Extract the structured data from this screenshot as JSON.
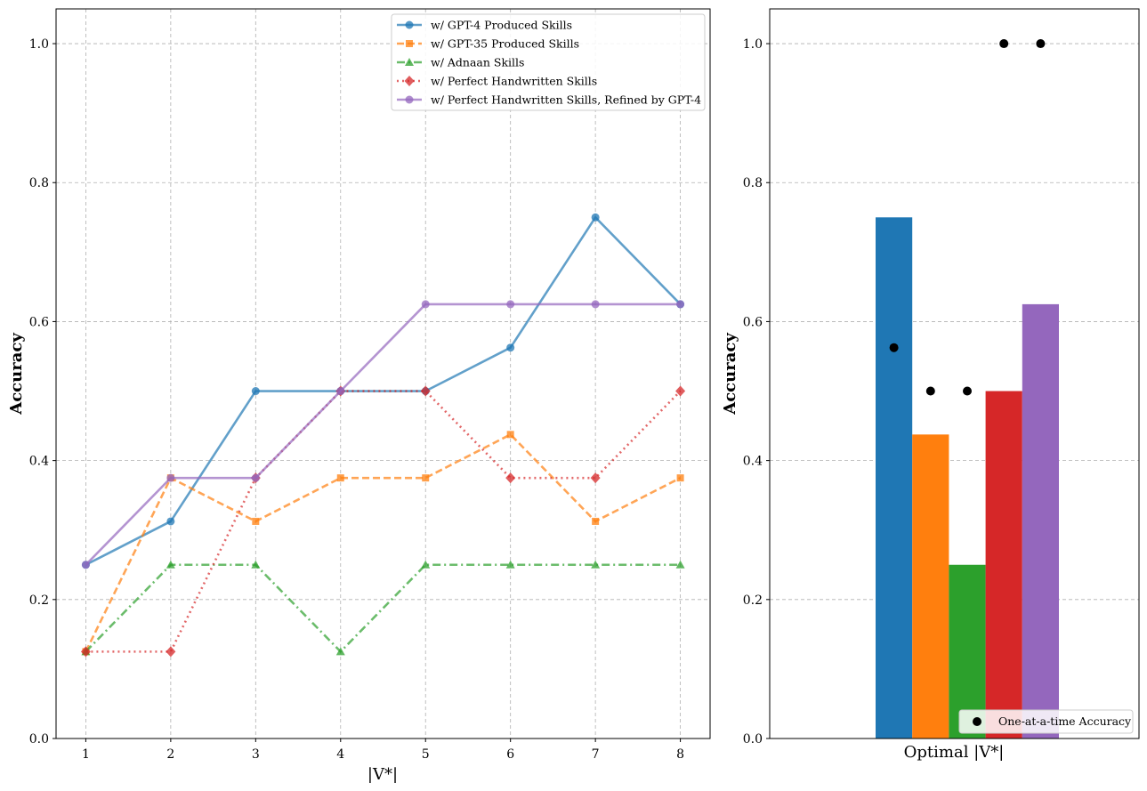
{
  "chart_data": [
    {
      "type": "line",
      "xlabel": "|V*|",
      "ylabel": "Accuracy",
      "xlim": [
        0.65,
        8.35
      ],
      "ylim": [
        0,
        1.05
      ],
      "grid": true,
      "legend_position": "top-right",
      "x": [
        1,
        2,
        3,
        4,
        5,
        6,
        7,
        8
      ],
      "x_ticks": [
        "1",
        "2",
        "3",
        "4",
        "5",
        "6",
        "7",
        "8"
      ],
      "y_ticks": [
        "0.0",
        "0.2",
        "0.4",
        "0.6",
        "0.8",
        "1.0"
      ],
      "series": [
        {
          "name": "w/ GPT-4 Produced Skills",
          "color": "#1f77b4",
          "marker": "circle",
          "dash": "solid",
          "values": [
            0.25,
            0.3125,
            0.5,
            0.5,
            0.5,
            0.5625,
            0.75,
            0.625
          ]
        },
        {
          "name": "w/ GPT-35 Produced Skills",
          "color": "#ff7f0e",
          "marker": "square",
          "dash": "dashed",
          "values": [
            0.125,
            0.375,
            0.3125,
            0.375,
            0.375,
            0.4375,
            0.3125,
            0.375
          ]
        },
        {
          "name": "w/ Adnaan Skills",
          "color": "#2ca02c",
          "marker": "triangle",
          "dash": "dashdot",
          "values": [
            0.125,
            0.25,
            0.25,
            0.125,
            0.25,
            0.25,
            0.25,
            0.25
          ]
        },
        {
          "name": "w/ Perfect Handwritten Skills",
          "color": "#d62728",
          "marker": "diamond",
          "dash": "dotted",
          "values": [
            0.125,
            0.125,
            0.375,
            0.5,
            0.5,
            0.375,
            0.375,
            0.5
          ]
        },
        {
          "name": "w/ Perfect Handwritten Skills, Refined by GPT-4",
          "color": "#9467bd",
          "marker": "circle",
          "dash": "solid",
          "values": [
            0.25,
            0.375,
            0.375,
            0.5,
            0.625,
            0.625,
            0.625,
            0.625
          ]
        }
      ]
    },
    {
      "type": "bar",
      "xlabel": "Optimal |V*|",
      "ylabel": "Accuracy",
      "ylim": [
        0,
        1.05
      ],
      "grid": true,
      "legend_position": "bottom-right",
      "y_ticks": [
        "0.0",
        "0.2",
        "0.4",
        "0.6",
        "0.8",
        "1.0"
      ],
      "bars": [
        {
          "color": "#1f77b4",
          "value": 0.75
        },
        {
          "color": "#ff7f0e",
          "value": 0.4375
        },
        {
          "color": "#2ca02c",
          "value": 0.25
        },
        {
          "color": "#d62728",
          "value": 0.5
        },
        {
          "color": "#9467bd",
          "value": 0.625
        }
      ],
      "points": {
        "name": "One-at-a-time Accuracy",
        "color": "#000000",
        "values": [
          0.5625,
          0.5,
          0.5,
          1.0,
          1.0
        ]
      }
    }
  ]
}
